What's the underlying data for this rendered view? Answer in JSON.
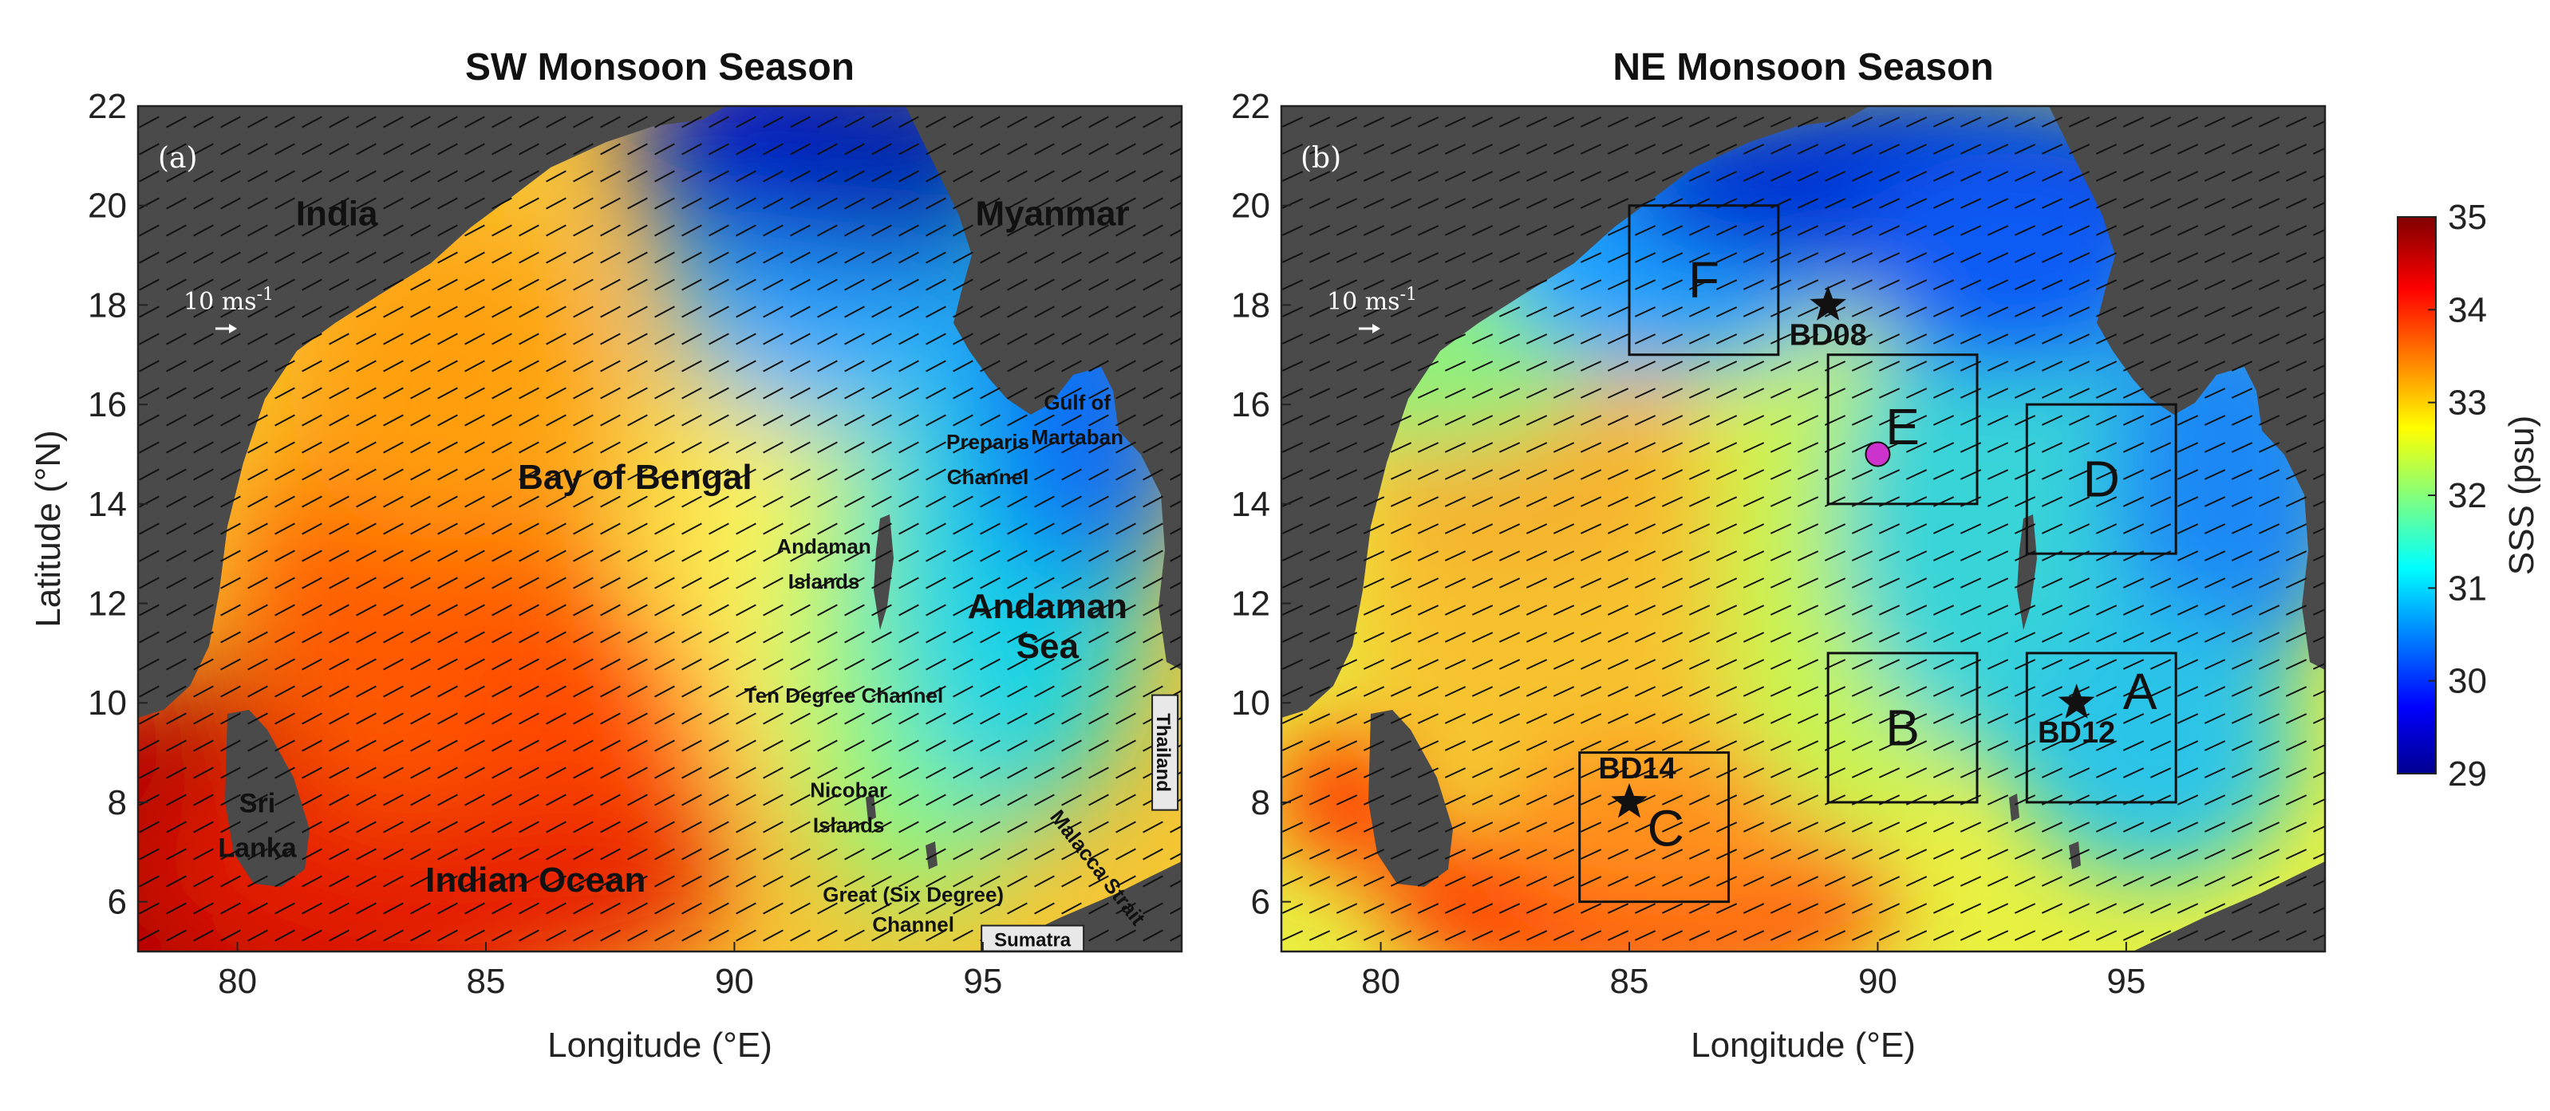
{
  "figure": {
    "panel_a": {
      "title": "SW Monsoon Season",
      "panel_label": "(a)",
      "scale_label": "10 ms",
      "scale_exp": "-1",
      "xlabel": "Longitude (°E)",
      "ylabel": "Latitude (°N)",
      "geo_labels": [
        {
          "text": "India",
          "lon": 82.0,
          "lat": 19.6,
          "size": "big"
        },
        {
          "text": "Myanmar",
          "lon": 96.4,
          "lat": 19.6,
          "size": "big"
        },
        {
          "text": "Bay of Bengal",
          "lon": 88.0,
          "lat": 14.3,
          "size": "big"
        },
        {
          "text": "Andaman",
          "lon": 96.3,
          "lat": 11.7,
          "size": "big"
        },
        {
          "text": "Sea",
          "lon": 96.3,
          "lat": 10.9,
          "size": "big"
        },
        {
          "text": "Preparis",
          "lon": 95.1,
          "lat": 15.1,
          "size": "mid"
        },
        {
          "text": "Channel",
          "lon": 95.1,
          "lat": 14.4,
          "size": "mid"
        },
        {
          "text": "Gulf of",
          "lon": 96.9,
          "lat": 15.9,
          "size": "mid"
        },
        {
          "text": "Martaban",
          "lon": 96.9,
          "lat": 15.2,
          "size": "mid"
        },
        {
          "text": "Andaman",
          "lon": 91.8,
          "lat": 13.0,
          "size": "mid"
        },
        {
          "text": "Islands",
          "lon": 91.8,
          "lat": 12.3,
          "size": "mid"
        },
        {
          "text": "Ten Degree Channel",
          "lon": 92.2,
          "lat": 10.0,
          "size": "mid"
        },
        {
          "text": "Nicobar",
          "lon": 92.3,
          "lat": 8.1,
          "size": "mid"
        },
        {
          "text": "Islands",
          "lon": 92.3,
          "lat": 7.4,
          "size": "mid"
        },
        {
          "text": "Great (Six Degree)",
          "lon": 93.6,
          "lat": 6.0,
          "size": "mid"
        },
        {
          "text": "Channel",
          "lon": 93.6,
          "lat": 5.4,
          "size": "mid"
        },
        {
          "text": "Malacca Strait",
          "lon": 97.2,
          "lat": 6.6,
          "size": "mid",
          "rotate": 52
        },
        {
          "text": "Sri",
          "lon": 80.4,
          "lat": 7.8,
          "size": "mid-l"
        },
        {
          "text": "Lanka",
          "lon": 80.4,
          "lat": 6.9,
          "size": "mid-l"
        },
        {
          "text": "Indian Ocean",
          "lon": 86.0,
          "lat": 6.2,
          "size": "big"
        }
      ],
      "boxed_labels": [
        {
          "text": "Thailand",
          "lon": 98.6,
          "lat": 9.0,
          "rotate": 90
        },
        {
          "text": "Sumatra",
          "lon": 96.0,
          "lat": 5.2,
          "rotate": 0
        }
      ]
    },
    "panel_b": {
      "title": "NE Monsoon Season",
      "panel_label": "(b)",
      "scale_label": "10 ms",
      "scale_exp": "-1",
      "xlabel": "Longitude (°E)",
      "boxes": [
        {
          "label": "F",
          "lon_min": 85,
          "lon_max": 88,
          "lat_min": 17,
          "lat_max": 20
        },
        {
          "label": "E",
          "lon_min": 89,
          "lon_max": 92,
          "lat_min": 14,
          "lat_max": 17
        },
        {
          "label": "D",
          "lon_min": 93,
          "lon_max": 96,
          "lat_min": 13,
          "lat_max": 16
        },
        {
          "label": "B",
          "lon_min": 89,
          "lon_max": 92,
          "lat_min": 8,
          "lat_max": 11
        },
        {
          "label": "A",
          "lon_min": 93,
          "lon_max": 96,
          "lat_min": 8,
          "lat_max": 11
        },
        {
          "label": "C",
          "lon_min": 84,
          "lon_max": 87,
          "lat_min": 6,
          "lat_max": 9
        }
      ],
      "stations": [
        {
          "label": "BD08",
          "lon": 89,
          "lat": 18
        },
        {
          "label": "BD12",
          "lon": 94,
          "lat": 10
        },
        {
          "label": "BD14",
          "lon": 85,
          "lat": 8
        }
      ],
      "point": {
        "lon": 90,
        "lat": 15,
        "color": "#cc33cc"
      }
    },
    "colorbar": {
      "label": "SSS (psu)",
      "min": 29,
      "max": 35,
      "ticks": [
        "29",
        "30",
        "31",
        "32",
        "33",
        "34",
        "35"
      ],
      "colormap": "jet"
    },
    "axes": {
      "lon_range": [
        78,
        99
      ],
      "lat_range": [
        5,
        22
      ],
      "xticks": [
        "80",
        "85",
        "90",
        "95"
      ],
      "yticks": [
        "6",
        "8",
        "10",
        "12",
        "14",
        "16",
        "18",
        "20",
        "22"
      ]
    },
    "colors": {
      "land": "#4a4a4a",
      "arrow": "#111111"
    }
  }
}
